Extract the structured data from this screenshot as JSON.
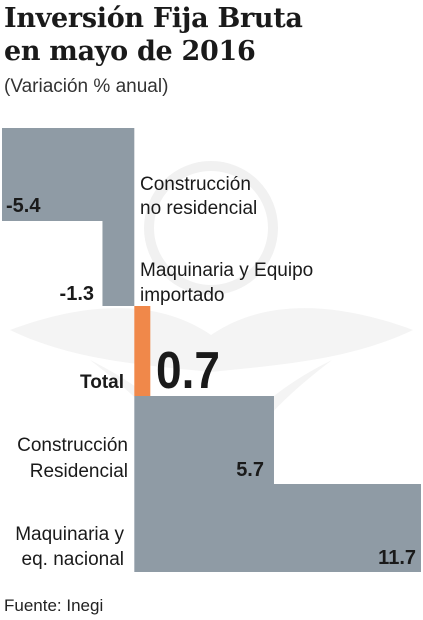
{
  "title_lines": [
    "Inversión Fija Bruta",
    "en mayo de 2016"
  ],
  "subtitle": "(Variación % anual)",
  "source": "Fuente: Inegi",
  "colors": {
    "bar": "#8f9ba5",
    "highlight": "#f0884a",
    "watermark": "#f3f3f3",
    "text": "#1a1a1a"
  },
  "chart_data": {
    "type": "bar",
    "orientation": "horizontal",
    "categories": [
      [
        "Construcción",
        "no residencial"
      ],
      [
        "Maquinaria y Equipo",
        "importado"
      ],
      [
        "Total"
      ],
      [
        "Construcción",
        "Residencial"
      ],
      [
        "Maquinaria y",
        "eq. nacional"
      ]
    ],
    "values": [
      -5.4,
      -1.3,
      0.7,
      5.7,
      11.7
    ],
    "value_labels": [
      "-5.4",
      "-1.3",
      "0.7",
      "5.7",
      "11.7"
    ],
    "highlight_index": 2,
    "xlim": [
      -5.4,
      11.7
    ],
    "grid": false,
    "legend": "none",
    "title": "Inversión Fija Bruta en mayo de 2016",
    "subtitle": "(Variación % anual)"
  }
}
